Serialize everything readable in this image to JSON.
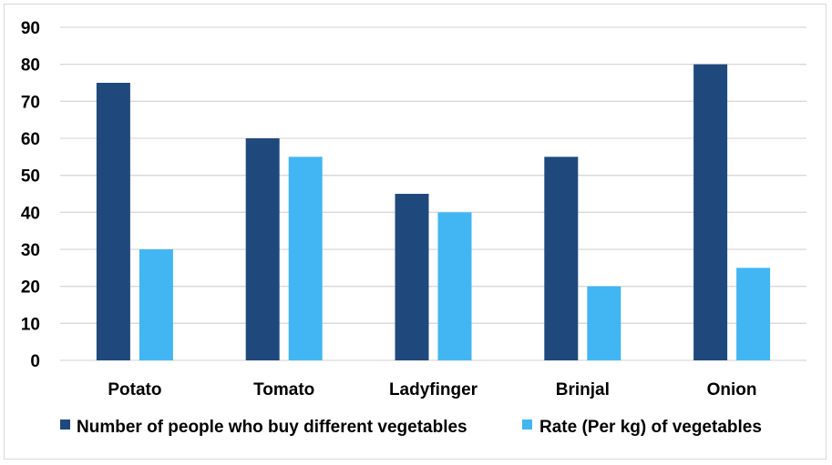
{
  "chart_data": {
    "type": "bar",
    "categories": [
      "Potato",
      "Tomato",
      "Ladyfinger",
      "Brinjal",
      "Onion"
    ],
    "series": [
      {
        "name": "Number of people who buy different vegetables",
        "values": [
          75,
          60,
          45,
          55,
          80
        ],
        "color": "#1f497d"
      },
      {
        "name": "Rate (Per kg) of vegetables",
        "values": [
          30,
          55,
          40,
          20,
          25
        ],
        "color": "#41b6f2"
      }
    ],
    "ylim": [
      0,
      90
    ],
    "yticks": [
      0,
      10,
      20,
      30,
      40,
      50,
      60,
      70,
      80,
      90
    ],
    "grid": true,
    "legend": "bottom",
    "gridColor": "#d9d9d9"
  }
}
